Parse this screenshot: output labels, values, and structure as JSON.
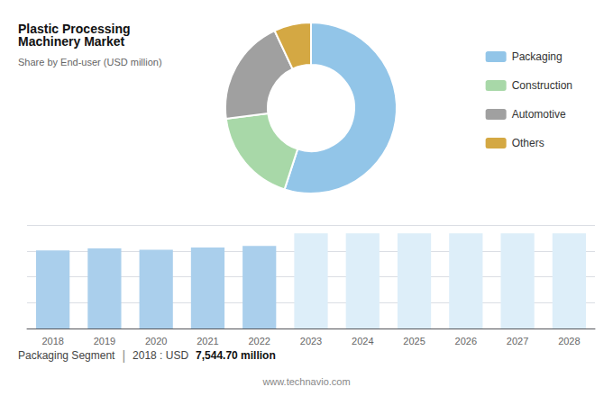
{
  "chart_data": [
    {
      "type": "pie",
      "title": "Plastic Processing Machinery Market",
      "subtitle": "Share by End-user (USD million)",
      "categories": [
        "Packaging",
        "Construction",
        "Automotive",
        "Others"
      ],
      "values": [
        55,
        18,
        20,
        7
      ],
      "colors": [
        "#92c5e8",
        "#a8d8a8",
        "#a0a0a0",
        "#d4a843"
      ],
      "legend": "right"
    },
    {
      "type": "bar",
      "categories": [
        "2018",
        "2019",
        "2020",
        "2021",
        "2022",
        "2023",
        "2024",
        "2025",
        "2026",
        "2027",
        "2028"
      ],
      "values": [
        7544.7,
        7750,
        7600,
        7820,
        7980,
        9200,
        9200,
        9200,
        9200,
        9200,
        9200
      ],
      "colors": [
        "#aacfec",
        "#aacfec",
        "#aacfec",
        "#aacfec",
        "#aacfec",
        "#ddeef9",
        "#ddeef9",
        "#ddeef9",
        "#ddeef9",
        "#ddeef9",
        "#ddeef9"
      ],
      "ylim": [
        0,
        10000
      ],
      "yticks": [
        0,
        2500,
        5000,
        7500,
        10000
      ],
      "grid": true,
      "tick_labels": "x",
      "annotations": [
        "Packaging Segment",
        "|",
        "2018 : USD",
        "7,544.70 million",
        "www.technavio.com"
      ]
    }
  ]
}
